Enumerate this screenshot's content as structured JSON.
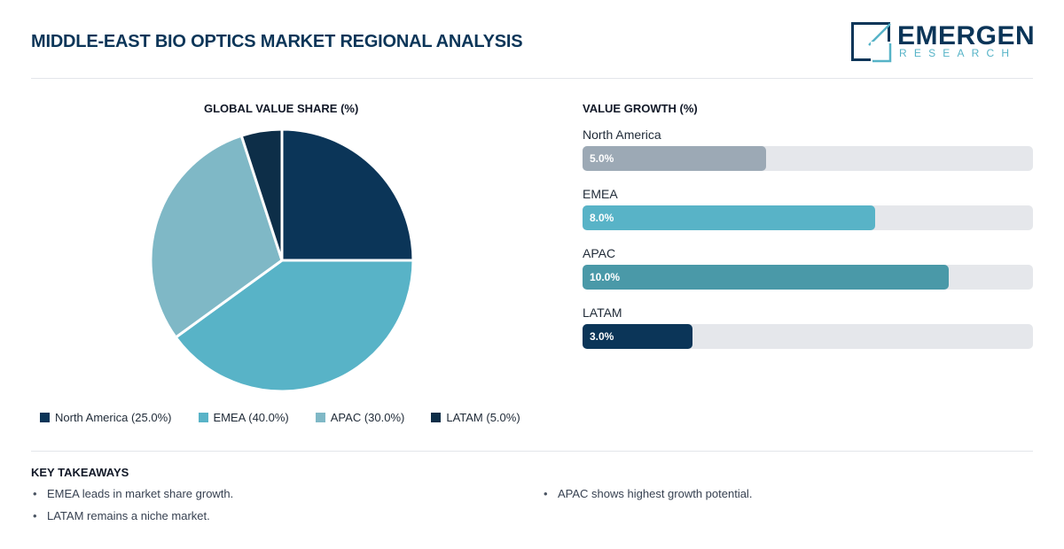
{
  "header": {
    "title": "MIDDLE-EAST BIO OPTICS MARKET REGIONAL ANALYSIS",
    "logo_word": "EMERGEN",
    "logo_sub": "RESEARCH"
  },
  "pie": {
    "title": "GLOBAL VALUE SHARE (%)",
    "legend": [
      {
        "label": "North America (25.0%)",
        "color": "#0b3558"
      },
      {
        "label": "EMEA (40.0%)",
        "color": "#58b3c7"
      },
      {
        "label": "APAC (30.0%)",
        "color": "#7fb8c6"
      },
      {
        "label": "LATAM (5.0%)",
        "color": "#0d2e48"
      }
    ]
  },
  "bars": {
    "title": "VALUE GROWTH (%)",
    "items": [
      {
        "label": "North America",
        "value_label": "5.0%",
        "color": "#9ca9b5"
      },
      {
        "label": "EMEA",
        "value_label": "8.0%",
        "color": "#58b3c7"
      },
      {
        "label": "APAC",
        "value_label": "10.0%",
        "color": "#4a99a8"
      },
      {
        "label": "LATAM",
        "value_label": "3.0%",
        "color": "#0b3558"
      }
    ]
  },
  "takeaways": {
    "title": "KEY TAKEAWAYS",
    "items": [
      "EMEA leads in market share growth.",
      "APAC shows highest growth potential.",
      "LATAM remains a niche market."
    ]
  },
  "chart_data": [
    {
      "type": "pie",
      "title": "GLOBAL VALUE SHARE (%)",
      "categories": [
        "North America",
        "EMEA",
        "APAC",
        "LATAM"
      ],
      "values": [
        25.0,
        40.0,
        30.0,
        5.0
      ],
      "colors": [
        "#0b3558",
        "#58b3c7",
        "#7fb8c6",
        "#0d2e48"
      ],
      "legend": "bottom"
    },
    {
      "type": "bar",
      "orientation": "horizontal",
      "title": "VALUE GROWTH (%)",
      "categories": [
        "North America",
        "EMEA",
        "APAC",
        "LATAM"
      ],
      "values": [
        5.0,
        8.0,
        10.0,
        3.0
      ],
      "value_labels": [
        "5.0%",
        "8.0%",
        "10.0%",
        "3.0%"
      ],
      "colors": [
        "#9ca9b5",
        "#58b3c7",
        "#4a99a8",
        "#0b3558"
      ]
    }
  ]
}
